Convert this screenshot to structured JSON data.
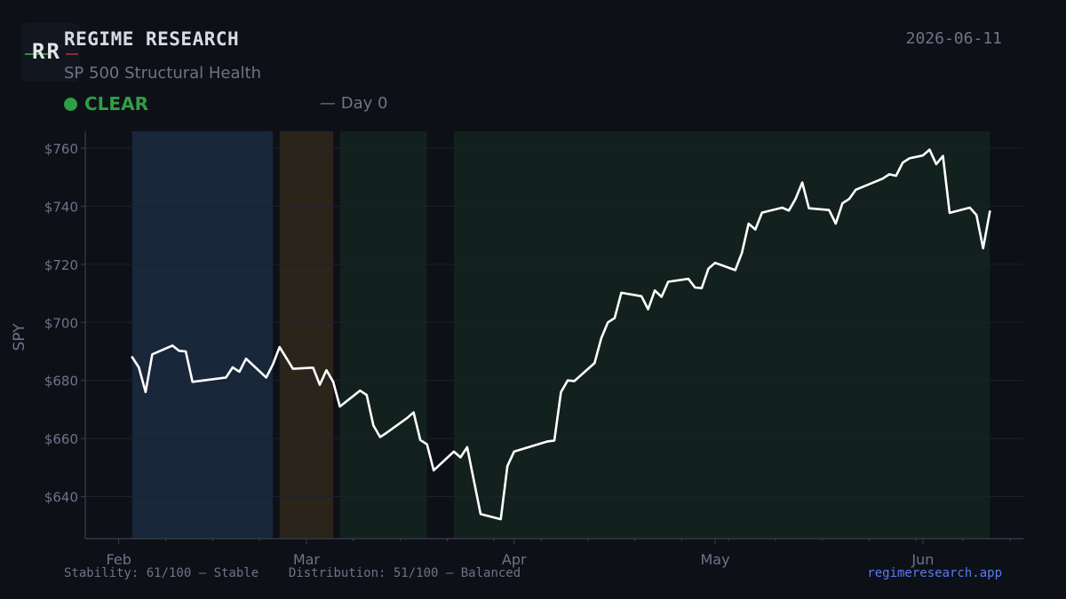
{
  "header": {
    "logo_text": "RR",
    "brand": "REGIME RESEARCH",
    "subtitle": "SP 500 Structural Health",
    "date": "2026-06-11",
    "status_label": "CLEAR",
    "day_label": "— Day 0"
  },
  "footer": {
    "stability": "Stability: 61/100 — Stable",
    "distribution": "Distribution: 51/100 — Balanced",
    "site": "regimeresearch.app"
  },
  "colors": {
    "background": "#0d1017",
    "line": "#ffffff",
    "status_green": "#2f9e44",
    "link_blue": "#5b7bf0",
    "regime_blue": "#18273a",
    "regime_orange": "#2b241a",
    "regime_green": "#12211d"
  },
  "chart_data": {
    "type": "line",
    "ylabel": "SPY",
    "ylim": [
      625.5,
      765.8
    ],
    "yticks": [
      {
        "value": 640,
        "label": "$640"
      },
      {
        "value": 660,
        "label": "$660"
      },
      {
        "value": 680,
        "label": "$680"
      },
      {
        "value": 700,
        "label": "$700"
      },
      {
        "value": 720,
        "label": "$720"
      },
      {
        "value": 740,
        "label": "$740"
      },
      {
        "value": 760,
        "label": "$760"
      }
    ],
    "xlim": [
      "2026-01-27",
      "2026-06-16"
    ],
    "xticks": [
      {
        "date": "2026-02-01",
        "label": "Feb"
      },
      {
        "date": "2026-03-01",
        "label": "Mar"
      },
      {
        "date": "2026-04-01",
        "label": "Apr"
      },
      {
        "date": "2026-05-01",
        "label": "May"
      },
      {
        "date": "2026-06-01",
        "label": "Jun"
      }
    ],
    "minor_ticks": [
      "2026-02-08",
      "2026-02-15",
      "2026-02-22",
      "2026-03-08",
      "2026-03-15",
      "2026-03-22",
      "2026-03-29",
      "2026-04-05",
      "2026-04-12",
      "2026-04-19",
      "2026-04-26",
      "2026-05-03",
      "2026-05-10",
      "2026-05-17",
      "2026-05-24",
      "2026-05-31",
      "2026-06-07",
      "2026-06-14"
    ],
    "regimes": [
      {
        "start": "2026-02-03",
        "end": "2026-02-24",
        "color": "#18273a"
      },
      {
        "start": "2026-02-25",
        "end": "2026-03-05",
        "color": "#2b241a"
      },
      {
        "start": "2026-03-06",
        "end": "2026-03-19",
        "color": "#12211d"
      },
      {
        "start": "2026-03-23",
        "end": "2026-06-11",
        "color": "#12211d"
      }
    ],
    "series": [
      {
        "points": [
          [
            "2026-02-03",
            688
          ],
          [
            "2026-02-04",
            684.5
          ],
          [
            "2026-02-05",
            676
          ],
          [
            "2026-02-06",
            689
          ],
          [
            "2026-02-09",
            692
          ],
          [
            "2026-02-10",
            690.2
          ],
          [
            "2026-02-11",
            690
          ],
          [
            "2026-02-12",
            679.5
          ],
          [
            "2026-02-17",
            681
          ],
          [
            "2026-02-18",
            684.5
          ],
          [
            "2026-02-19",
            683
          ],
          [
            "2026-02-20",
            687.5
          ],
          [
            "2026-02-23",
            681
          ],
          [
            "2026-02-24",
            685.5
          ],
          [
            "2026-02-25",
            691.5
          ],
          [
            "2026-02-27",
            684
          ],
          [
            "2026-03-02",
            684.4
          ],
          [
            "2026-03-03",
            678.5
          ],
          [
            "2026-03-04",
            683.5
          ],
          [
            "2026-03-05",
            679.5
          ],
          [
            "2026-03-06",
            671
          ],
          [
            "2026-03-09",
            676.5
          ],
          [
            "2026-03-10",
            675
          ],
          [
            "2026-03-11",
            664.5
          ],
          [
            "2026-03-12",
            660.5
          ],
          [
            "2026-03-13",
            662
          ],
          [
            "2026-03-16",
            667
          ],
          [
            "2026-03-17",
            669
          ],
          [
            "2026-03-18",
            659.5
          ],
          [
            "2026-03-19",
            658
          ],
          [
            "2026-03-20",
            649
          ],
          [
            "2026-03-23",
            655.5
          ],
          [
            "2026-03-24",
            653.5
          ],
          [
            "2026-03-25",
            657
          ],
          [
            "2026-03-27",
            634
          ],
          [
            "2026-03-30",
            632.2
          ],
          [
            "2026-03-31",
            650.5
          ],
          [
            "2026-04-01",
            655.5
          ],
          [
            "2026-04-06",
            659
          ],
          [
            "2026-04-07",
            659.3
          ],
          [
            "2026-04-08",
            676
          ],
          [
            "2026-04-09",
            680
          ],
          [
            "2026-04-10",
            679.8
          ],
          [
            "2026-04-13",
            686
          ],
          [
            "2026-04-14",
            694.5
          ],
          [
            "2026-04-15",
            700
          ],
          [
            "2026-04-16",
            701.5
          ],
          [
            "2026-04-17",
            710.2
          ],
          [
            "2026-04-20",
            709
          ],
          [
            "2026-04-21",
            704.5
          ],
          [
            "2026-04-22",
            711
          ],
          [
            "2026-04-23",
            708.8
          ],
          [
            "2026-04-24",
            714
          ],
          [
            "2026-04-27",
            715
          ],
          [
            "2026-04-28",
            712
          ],
          [
            "2026-04-29",
            711.8
          ],
          [
            "2026-04-30",
            718.5
          ],
          [
            "2026-05-01",
            720.5
          ],
          [
            "2026-05-04",
            718
          ],
          [
            "2026-05-05",
            724
          ],
          [
            "2026-05-06",
            734
          ],
          [
            "2026-05-07",
            732
          ],
          [
            "2026-05-08",
            737.8
          ],
          [
            "2026-05-11",
            739.5
          ],
          [
            "2026-05-12",
            738.5
          ],
          [
            "2026-05-13",
            742.5
          ],
          [
            "2026-05-14",
            748.2
          ],
          [
            "2026-05-15",
            739.3
          ],
          [
            "2026-05-18",
            738.7
          ],
          [
            "2026-05-19",
            734
          ],
          [
            "2026-05-20",
            741
          ],
          [
            "2026-05-21",
            742.5
          ],
          [
            "2026-05-22",
            745.7
          ],
          [
            "2026-05-26",
            749.5
          ],
          [
            "2026-05-27",
            751
          ],
          [
            "2026-05-28",
            750.5
          ],
          [
            "2026-05-29",
            755
          ],
          [
            "2026-05-30",
            756.5
          ],
          [
            "2026-06-01",
            757.5
          ],
          [
            "2026-06-02",
            759.5
          ],
          [
            "2026-06-03",
            754.5
          ],
          [
            "2026-06-04",
            757.3
          ],
          [
            "2026-06-05",
            737.7
          ],
          [
            "2026-06-08",
            739.5
          ],
          [
            "2026-06-09",
            737
          ],
          [
            "2026-06-10",
            725.5
          ],
          [
            "2026-06-11",
            738.2
          ]
        ]
      }
    ]
  }
}
